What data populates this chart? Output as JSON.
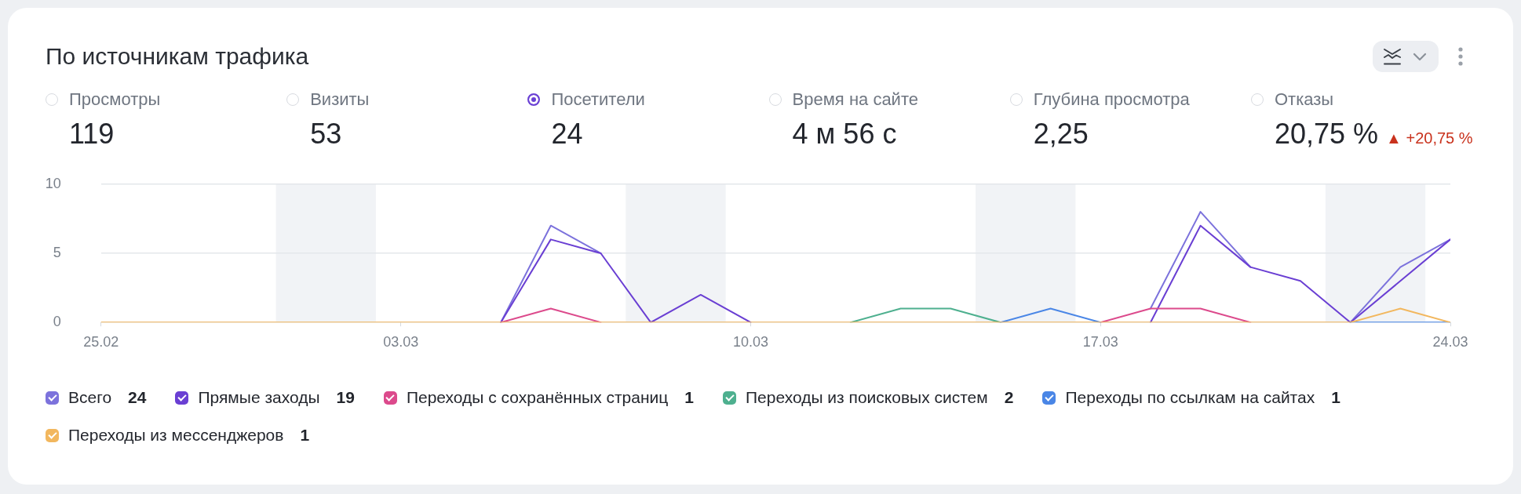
{
  "chart_data": {
    "type": "line",
    "title": "По источникам трафика",
    "x": [
      "--02-25",
      "--02-26",
      "--02-27",
      "--02-28",
      "--03-01",
      "--03-02",
      "--03-03",
      "--03-04",
      "--03-05",
      "--03-06",
      "--03-07",
      "--03-08",
      "--03-09",
      "--03-10",
      "--03-11",
      "--03-12",
      "--03-13",
      "--03-14",
      "--03-15",
      "--03-16",
      "--03-17",
      "--03-18",
      "--03-19",
      "--03-20",
      "--03-21",
      "--03-22",
      "--03-23",
      "--03-24"
    ],
    "series": [
      {
        "name": "Всего",
        "color": "#7c72dc",
        "values": [
          null,
          null,
          null,
          null,
          null,
          null,
          null,
          null,
          0,
          7,
          5,
          null,
          null,
          null,
          null,
          null,
          null,
          null,
          null,
          null,
          null,
          1,
          8,
          4,
          null,
          0,
          4,
          6
        ]
      },
      {
        "name": "Прямые заходы",
        "color": "#6a3fd3",
        "values": [
          null,
          null,
          null,
          null,
          null,
          null,
          null,
          null,
          0,
          6,
          5,
          0,
          2,
          0,
          null,
          null,
          null,
          null,
          null,
          null,
          null,
          0,
          7,
          4,
          3,
          0,
          3,
          6
        ]
      },
      {
        "name": "Переходы с сохранённых страниц",
        "color": "#dc4a8c",
        "values": [
          null,
          null,
          null,
          null,
          null,
          null,
          null,
          null,
          0,
          1,
          0,
          null,
          null,
          null,
          null,
          null,
          null,
          null,
          null,
          null,
          0,
          1,
          1,
          0,
          null,
          null,
          null,
          null
        ]
      },
      {
        "name": "Переходы из поисковых систем",
        "color": "#4eb08f",
        "values": [
          null,
          null,
          null,
          null,
          null,
          null,
          null,
          null,
          null,
          null,
          null,
          null,
          null,
          null,
          null,
          0,
          1,
          1,
          0,
          null,
          null,
          null,
          null,
          null,
          null,
          null,
          null,
          null
        ]
      },
      {
        "name": "Переходы по ссылкам на сайтах",
        "color": "#4a86e6",
        "values": [
          null,
          null,
          null,
          null,
          null,
          null,
          null,
          null,
          null,
          null,
          null,
          null,
          null,
          null,
          null,
          null,
          null,
          null,
          0,
          1,
          0,
          null,
          null,
          null,
          null,
          0,
          0,
          0
        ]
      },
      {
        "name": "Переходы из мессенджеров",
        "color": "#f2b75e",
        "values": [
          0,
          0,
          0,
          0,
          0,
          0,
          0,
          0,
          0,
          0,
          0,
          0,
          0,
          0,
          0,
          0,
          0,
          0,
          0,
          0,
          0,
          0,
          0,
          0,
          0,
          0,
          1,
          0
        ]
      }
    ],
    "xlim": [
      "--02-25",
      "--03-24"
    ],
    "xticks": [
      {
        "value": "--02-25",
        "label": "25.02"
      },
      {
        "value": "--03-03",
        "label": "03.03"
      },
      {
        "value": "--03-10",
        "label": "10.03"
      },
      {
        "value": "--03-17",
        "label": "17.03"
      },
      {
        "value": "--03-24",
        "label": "24.03"
      }
    ],
    "ylim": [
      0,
      10
    ],
    "yticks": [
      0,
      5,
      10
    ],
    "grid": "y",
    "legend": "bottom",
    "bands": [
      {
        "axis": "x",
        "from": "--02-28T12:00",
        "to": "--03-02T12:00",
        "color": "#f1f3f6"
      },
      {
        "axis": "x",
        "from": "--03-07T12:00",
        "to": "--03-09T12:00",
        "color": "#f1f3f6"
      },
      {
        "axis": "x",
        "from": "--03-14T12:00",
        "to": "--03-16T12:00",
        "color": "#f1f3f6"
      },
      {
        "axis": "x",
        "from": "--03-21T12:00",
        "to": "--03-23T12:00",
        "color": "#f1f3f6"
      }
    ],
    "annotations": [
      "Просмотры",
      "119",
      "Визиты",
      "53",
      "Посетители",
      "24",
      "Время на сайте",
      "4 м 56 с",
      "Глубина просмотра",
      "2,25",
      "Отказы",
      "20,75 %",
      "▲ +20,75 %",
      "24",
      "19",
      "1",
      "2",
      "1",
      "1"
    ]
  }
}
